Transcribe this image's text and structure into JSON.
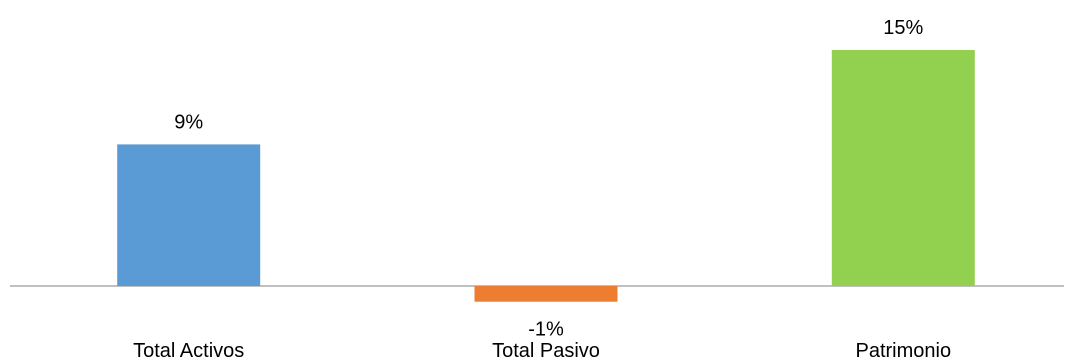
{
  "chart_data": {
    "type": "bar",
    "title": "",
    "xlabel": "",
    "ylabel": "",
    "categories": [
      "Total Activos",
      "Total Pasivo",
      "Patrimonio"
    ],
    "values": [
      9,
      -1,
      15
    ],
    "data_labels": [
      "9%",
      "-1%",
      "15%"
    ],
    "colors": [
      "#5B9BD5",
      "#ED7D31",
      "#92D050"
    ],
    "unit": "%",
    "ylim": [
      -1,
      15
    ],
    "grid": false,
    "legend": "none",
    "axis_color": "#808080"
  }
}
